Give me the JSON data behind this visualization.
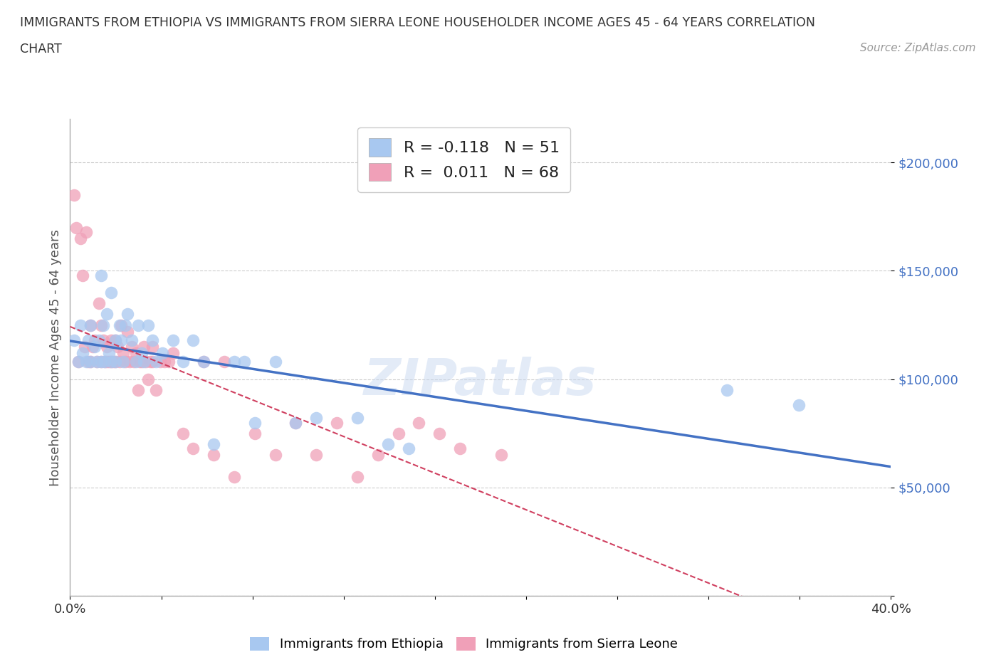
{
  "title_line1": "IMMIGRANTS FROM ETHIOPIA VS IMMIGRANTS FROM SIERRA LEONE HOUSEHOLDER INCOME AGES 45 - 64 YEARS CORRELATION",
  "title_line2": "CHART",
  "source": "Source: ZipAtlas.com",
  "ylabel": "Householder Income Ages 45 - 64 years",
  "xlim": [
    0.0,
    0.4
  ],
  "ylim": [
    0,
    220000
  ],
  "color_ethiopia": "#a8c8f0",
  "color_sierra": "#f0a0b8",
  "line_color_ethiopia": "#4472c4",
  "line_color_sierra": "#d04060",
  "R_ethiopia": -0.118,
  "N_ethiopia": 51,
  "R_sierra": 0.011,
  "N_sierra": 68,
  "ethiopia_x": [
    0.002,
    0.004,
    0.005,
    0.006,
    0.008,
    0.009,
    0.01,
    0.01,
    0.012,
    0.013,
    0.014,
    0.015,
    0.015,
    0.016,
    0.017,
    0.018,
    0.019,
    0.02,
    0.02,
    0.022,
    0.022,
    0.024,
    0.025,
    0.026,
    0.027,
    0.028,
    0.03,
    0.032,
    0.033,
    0.035,
    0.036,
    0.038,
    0.04,
    0.042,
    0.045,
    0.05,
    0.055,
    0.06,
    0.065,
    0.07,
    0.08,
    0.085,
    0.09,
    0.1,
    0.11,
    0.12,
    0.14,
    0.155,
    0.165,
    0.32,
    0.355
  ],
  "ethiopia_y": [
    118000,
    108000,
    125000,
    112000,
    108000,
    118000,
    125000,
    108000,
    115000,
    108000,
    118000,
    148000,
    108000,
    125000,
    108000,
    130000,
    112000,
    140000,
    108000,
    118000,
    108000,
    125000,
    118000,
    108000,
    125000,
    130000,
    118000,
    108000,
    125000,
    112000,
    108000,
    125000,
    118000,
    108000,
    112000,
    118000,
    108000,
    118000,
    108000,
    70000,
    108000,
    108000,
    80000,
    108000,
    80000,
    82000,
    82000,
    70000,
    68000,
    95000,
    88000
  ],
  "sierra_x": [
    0.002,
    0.003,
    0.004,
    0.005,
    0.006,
    0.007,
    0.008,
    0.009,
    0.01,
    0.01,
    0.011,
    0.012,
    0.013,
    0.014,
    0.015,
    0.015,
    0.016,
    0.017,
    0.018,
    0.018,
    0.019,
    0.02,
    0.02,
    0.021,
    0.022,
    0.022,
    0.023,
    0.024,
    0.025,
    0.026,
    0.027,
    0.028,
    0.029,
    0.03,
    0.031,
    0.032,
    0.033,
    0.034,
    0.035,
    0.036,
    0.037,
    0.038,
    0.039,
    0.04,
    0.04,
    0.042,
    0.044,
    0.046,
    0.048,
    0.05,
    0.055,
    0.06,
    0.065,
    0.07,
    0.075,
    0.08,
    0.09,
    0.1,
    0.11,
    0.12,
    0.13,
    0.14,
    0.15,
    0.16,
    0.17,
    0.18,
    0.19,
    0.21
  ],
  "sierra_y": [
    185000,
    170000,
    108000,
    165000,
    148000,
    115000,
    168000,
    108000,
    108000,
    125000,
    115000,
    118000,
    108000,
    135000,
    108000,
    125000,
    118000,
    108000,
    115000,
    108000,
    108000,
    108000,
    118000,
    108000,
    118000,
    108000,
    115000,
    108000,
    125000,
    112000,
    108000,
    122000,
    108000,
    115000,
    108000,
    112000,
    95000,
    108000,
    108000,
    115000,
    108000,
    100000,
    108000,
    108000,
    115000,
    95000,
    108000,
    108000,
    108000,
    112000,
    75000,
    68000,
    108000,
    65000,
    108000,
    55000,
    75000,
    65000,
    80000,
    65000,
    80000,
    55000,
    65000,
    75000,
    80000,
    75000,
    68000,
    65000
  ],
  "watermark": "ZIPatlas",
  "background_color": "#ffffff",
  "grid_color": "#cccccc"
}
